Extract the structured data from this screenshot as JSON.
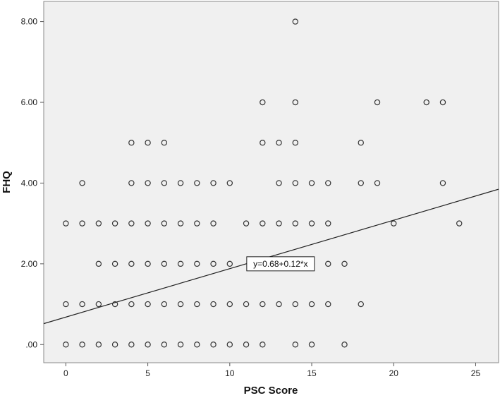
{
  "chart_data": {
    "type": "scatter",
    "xlabel": "PSC Score",
    "ylabel": "FHQ",
    "xlim": [
      -1.35,
      26.4
    ],
    "ylim": [
      -0.45,
      8.5
    ],
    "x_ticks": [
      0,
      5,
      10,
      15,
      20,
      25
    ],
    "x_tick_labels": [
      "0",
      "5",
      "10",
      "15",
      "20",
      "25"
    ],
    "y_ticks": [
      0,
      2,
      4,
      6,
      8
    ],
    "y_tick_labels": [
      ".00",
      "2.00",
      "4.00",
      "6.00",
      "8.00"
    ],
    "grid": false,
    "fit_line": {
      "intercept": 0.68,
      "slope": 0.12,
      "label": "y=0.68+0.12*x",
      "label_x": 13.1,
      "label_y": 2.0
    },
    "points": [
      [
        0,
        0
      ],
      [
        1,
        0
      ],
      [
        2,
        0
      ],
      [
        3,
        0
      ],
      [
        4,
        0
      ],
      [
        5,
        0
      ],
      [
        6,
        0
      ],
      [
        7,
        0
      ],
      [
        8,
        0
      ],
      [
        9,
        0
      ],
      [
        10,
        0
      ],
      [
        11,
        0
      ],
      [
        12,
        0
      ],
      [
        14,
        0
      ],
      [
        15,
        0
      ],
      [
        17,
        0
      ],
      [
        0,
        1
      ],
      [
        1,
        1
      ],
      [
        2,
        1
      ],
      [
        3,
        1
      ],
      [
        4,
        1
      ],
      [
        5,
        1
      ],
      [
        6,
        1
      ],
      [
        7,
        1
      ],
      [
        8,
        1
      ],
      [
        9,
        1
      ],
      [
        10,
        1
      ],
      [
        11,
        1
      ],
      [
        12,
        1
      ],
      [
        13,
        1
      ],
      [
        14,
        1
      ],
      [
        15,
        1
      ],
      [
        16,
        1
      ],
      [
        18,
        1
      ],
      [
        2,
        2
      ],
      [
        3,
        2
      ],
      [
        4,
        2
      ],
      [
        5,
        2
      ],
      [
        6,
        2
      ],
      [
        7,
        2
      ],
      [
        8,
        2
      ],
      [
        9,
        2
      ],
      [
        10,
        2
      ],
      [
        15,
        2
      ],
      [
        16,
        2
      ],
      [
        17,
        2
      ],
      [
        0,
        3
      ],
      [
        1,
        3
      ],
      [
        2,
        3
      ],
      [
        3,
        3
      ],
      [
        4,
        3
      ],
      [
        5,
        3
      ],
      [
        6,
        3
      ],
      [
        7,
        3
      ],
      [
        8,
        3
      ],
      [
        9,
        3
      ],
      [
        11,
        3
      ],
      [
        12,
        3
      ],
      [
        13,
        3
      ],
      [
        14,
        3
      ],
      [
        15,
        3
      ],
      [
        16,
        3
      ],
      [
        20,
        3
      ],
      [
        24,
        3
      ],
      [
        1,
        4
      ],
      [
        4,
        4
      ],
      [
        5,
        4
      ],
      [
        6,
        4
      ],
      [
        7,
        4
      ],
      [
        8,
        4
      ],
      [
        9,
        4
      ],
      [
        10,
        4
      ],
      [
        13,
        4
      ],
      [
        14,
        4
      ],
      [
        15,
        4
      ],
      [
        16,
        4
      ],
      [
        18,
        4
      ],
      [
        19,
        4
      ],
      [
        23,
        4
      ],
      [
        4,
        5
      ],
      [
        5,
        5
      ],
      [
        6,
        5
      ],
      [
        12,
        5
      ],
      [
        13,
        5
      ],
      [
        14,
        5
      ],
      [
        18,
        5
      ],
      [
        12,
        6
      ],
      [
        14,
        6
      ],
      [
        19,
        6
      ],
      [
        22,
        6
      ],
      [
        23,
        6
      ],
      [
        14,
        8
      ]
    ]
  }
}
